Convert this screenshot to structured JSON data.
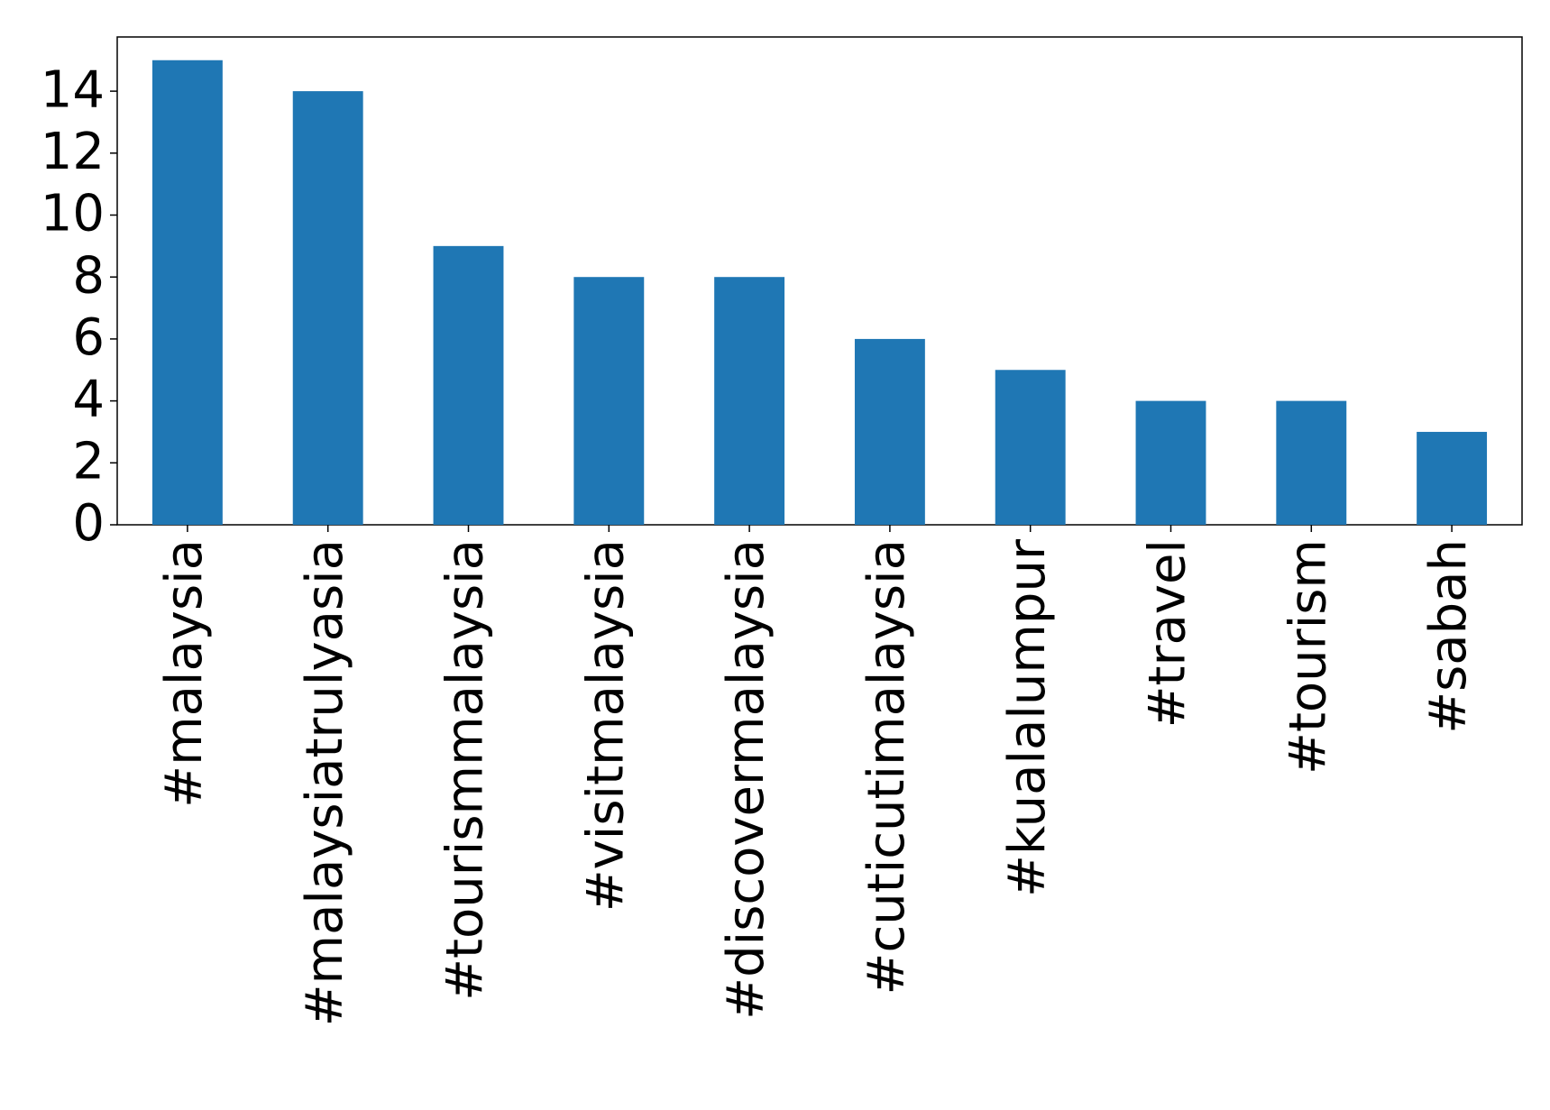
{
  "chart_data": {
    "type": "bar",
    "categories": [
      "#malaysia",
      "#malaysiatrulyasia",
      "#tourismmalaysia",
      "#visitmalaysia",
      "#discovermalaysia",
      "#cuticutimalaysia",
      "#kualalumpur",
      "#travel",
      "#tourism",
      "#sabah"
    ],
    "values": [
      15,
      14,
      9,
      8,
      8,
      6,
      5,
      4,
      4,
      3
    ],
    "color": "#1f77b4",
    "ylim": [
      0,
      15.75
    ],
    "yticks": [
      0,
      2,
      4,
      6,
      8,
      10,
      12,
      14
    ],
    "grid": false
  }
}
